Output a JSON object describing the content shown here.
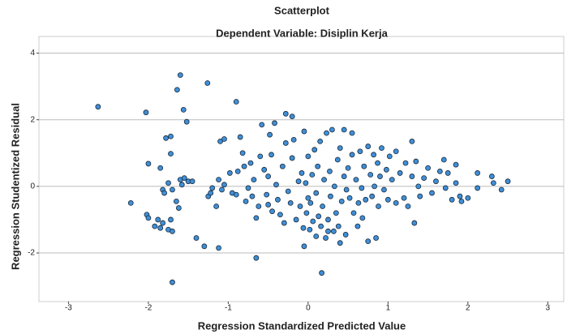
{
  "chart_data": {
    "type": "scatter",
    "title": "Scatterplot",
    "subtitle": "Dependent Variable: Disiplin Kerja",
    "x_label": "Regression Standardized Predicted Value",
    "y_label": "Regression Studentized Residual",
    "color": "#3f8fd8",
    "grid": true,
    "xlim": [
      -3.37,
      3.2
    ],
    "ylim": [
      -3.46,
      4.5
    ],
    "xticks": [
      -3,
      -2,
      -1,
      0,
      1,
      2,
      3
    ],
    "yticks": [
      -2,
      0,
      2,
      4
    ],
    "x": [
      -2.63,
      -2.03,
      -1.6,
      -1.64,
      -1.26,
      -1.56,
      -0.9,
      -1.52,
      -1.7,
      -0.65,
      0.17,
      -2.22,
      -2.0,
      -1.85,
      -2.02,
      -2.0,
      -1.92,
      -1.88,
      -1.85,
      -1.82,
      -1.75,
      -1.72,
      -1.7,
      -1.82,
      -1.8,
      -1.75,
      -1.6,
      -1.58,
      -1.55,
      -1.5,
      -1.65,
      -1.62,
      -1.78,
      -1.72,
      -1.72,
      -1.7,
      -1.45,
      -1.4,
      -1.3,
      -1.12,
      -1.25,
      -1.22,
      -1.2,
      -1.15,
      -1.12,
      -1.08,
      -1.05,
      -1.1,
      -1.05,
      -0.98,
      -0.95,
      -0.9,
      -0.88,
      -0.85,
      -0.82,
      -0.8,
      -0.78,
      -0.75,
      -0.72,
      -0.7,
      -0.68,
      -0.65,
      -0.62,
      -0.6,
      -0.58,
      -0.55,
      -0.52,
      -0.5,
      -0.48,
      -0.46,
      -0.45,
      -0.42,
      -0.4,
      -0.38,
      -0.35,
      -0.32,
      -0.3,
      -0.28,
      -0.25,
      -0.22,
      -0.2,
      -0.18,
      -0.15,
      -0.12,
      -0.1,
      -0.08,
      -0.06,
      -0.05,
      -0.03,
      -0.02,
      0.0,
      0.0,
      0.02,
      0.03,
      0.05,
      0.06,
      0.08,
      0.1,
      0.1,
      0.12,
      0.13,
      0.15,
      0.16,
      0.18,
      0.2,
      0.22,
      0.23,
      0.25,
      0.27,
      0.28,
      0.3,
      0.32,
      0.33,
      0.35,
      0.37,
      0.38,
      0.4,
      0.42,
      0.45,
      0.47,
      0.48,
      0.5,
      0.52,
      0.55,
      0.55,
      0.57,
      0.6,
      0.62,
      0.63,
      0.65,
      0.67,
      0.68,
      0.7,
      0.72,
      0.75,
      0.75,
      0.78,
      0.8,
      0.82,
      0.83,
      0.85,
      0.87,
      0.88,
      0.9,
      0.92,
      0.95,
      0.98,
      1.0,
      1.02,
      1.05,
      1.1,
      1.15,
      1.2,
      1.22,
      1.25,
      1.3,
      1.33,
      1.35,
      1.38,
      1.4,
      1.45,
      1.5,
      1.55,
      1.6,
      1.65,
      1.7,
      1.72,
      1.75,
      1.8,
      1.85,
      1.9,
      1.92,
      2.0,
      2.12,
      2.12,
      2.3,
      2.32,
      2.42,
      2.5,
      1.3,
      1.1,
      -0.28,
      -0.2,
      0.4,
      -0.05,
      0.25,
      1.85,
      0.45,
      -0.5
    ],
    "values": [
      2.39,
      2.22,
      3.34,
      2.9,
      3.1,
      2.3,
      2.54,
      1.94,
      -2.88,
      -2.15,
      -2.6,
      -0.5,
      0.68,
      0.55,
      -0.85,
      -0.95,
      -1.2,
      -1.0,
      -1.25,
      -1.1,
      -1.3,
      -1.0,
      -1.35,
      -0.1,
      -0.2,
      0.1,
      0.2,
      0.05,
      0.25,
      0.15,
      -0.45,
      -0.65,
      1.45,
      1.5,
      0.98,
      -0.1,
      0.15,
      -1.55,
      -1.8,
      -1.85,
      -0.3,
      -0.2,
      -0.05,
      -0.6,
      0.2,
      -0.1,
      0.05,
      1.35,
      1.42,
      0.4,
      -0.2,
      -0.25,
      0.45,
      1.48,
      1.0,
      0.6,
      -0.45,
      -0.05,
      0.7,
      -0.3,
      0.2,
      -0.95,
      -0.6,
      0.9,
      1.85,
      0.5,
      -0.25,
      0.3,
      1.55,
      0.95,
      -0.75,
      1.9,
      0.05,
      -0.4,
      -0.85,
      0.6,
      -1.1,
      1.3,
      -0.15,
      -0.5,
      0.85,
      1.4,
      -1.0,
      0.15,
      -0.6,
      0.4,
      -1.25,
      1.65,
      0.1,
      -0.8,
      -0.35,
      0.9,
      -1.3,
      -0.5,
      0.35,
      -1.05,
      1.1,
      -0.2,
      -1.5,
      0.6,
      -0.9,
      1.35,
      -1.2,
      -0.6,
      0.2,
      -1.55,
      1.6,
      -1.0,
      0.45,
      -0.3,
      1.7,
      -1.35,
      0.0,
      -0.8,
      0.8,
      -1.2,
      1.15,
      -0.45,
      0.3,
      -1.45,
      -0.1,
      0.55,
      -0.35,
      1.6,
      0.95,
      -0.8,
      0.2,
      -1.2,
      -0.5,
      1.05,
      -0.05,
      -0.95,
      0.6,
      -0.4,
      1.2,
      -1.65,
      0.35,
      -0.3,
      0.95,
      0.0,
      -1.55,
      0.7,
      -0.6,
      0.3,
      1.15,
      -0.1,
      0.5,
      -0.4,
      0.9,
      0.2,
      -0.5,
      0.4,
      -0.35,
      0.7,
      -0.6,
      0.3,
      -1.1,
      0.75,
      0.0,
      -0.3,
      0.25,
      0.55,
      -0.2,
      0.15,
      0.45,
      0.8,
      -0.05,
      0.4,
      -0.4,
      0.1,
      -0.3,
      -0.45,
      -0.35,
      0.4,
      -0.05,
      0.3,
      0.1,
      -0.1,
      0.15,
      1.35,
      1.05,
      2.18,
      2.1,
      -1.7,
      -1.8,
      -1.35,
      0.65,
      1.7,
      -0.55
    ]
  }
}
